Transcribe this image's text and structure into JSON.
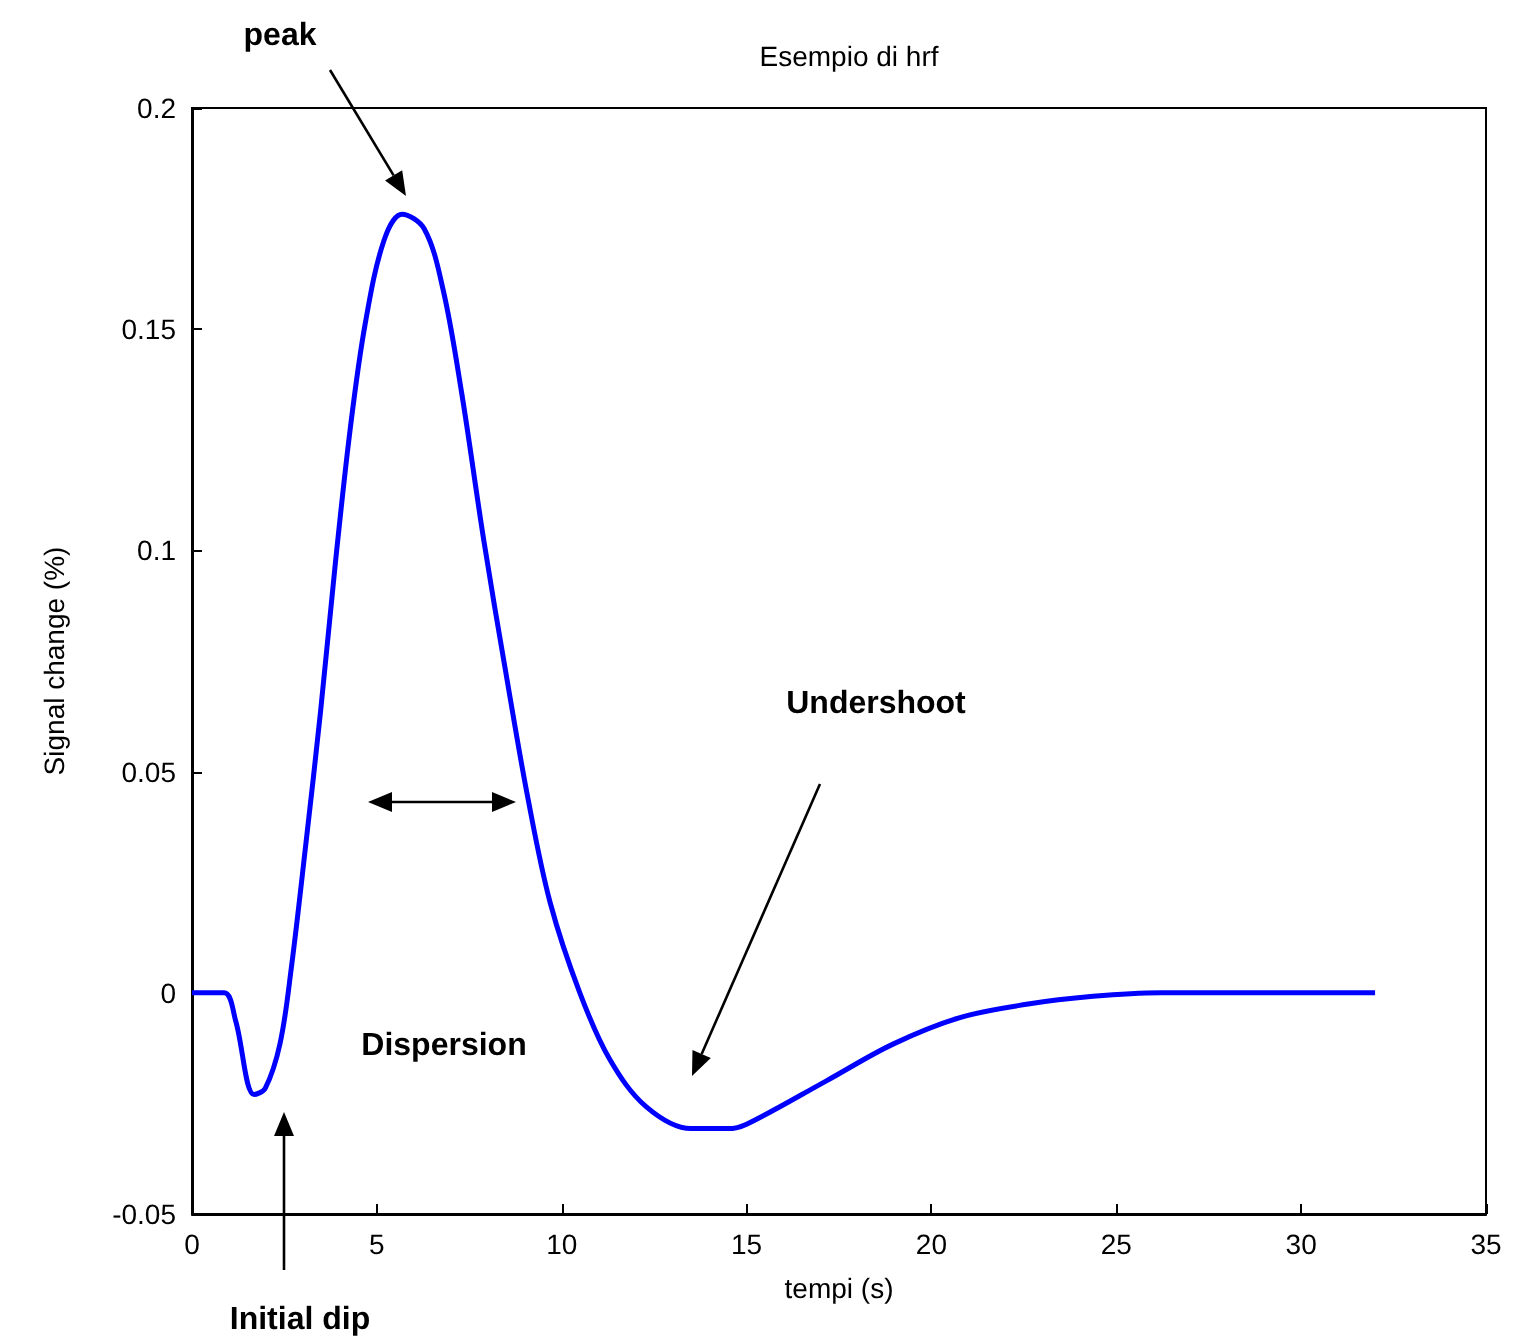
{
  "chart_data": {
    "type": "line",
    "title": "Esempio di hrf",
    "xlabel": "tempi (s)",
    "ylabel": "Signal change (%)",
    "annotations": [
      "peak",
      "Dispersion",
      "Undershoot",
      "Initial dip"
    ],
    "series": [
      {
        "color": "#0000ff",
        "x": [
          0,
          0.87,
          1.18,
          1.68,
          1.98,
          2.38,
          2.68,
          3.08,
          3.48,
          3.88,
          4.28,
          4.68,
          5.19,
          5.68,
          6.28,
          6.79,
          7.29,
          7.89,
          8.49,
          9.09,
          9.69,
          10.49,
          11.29,
          12.29,
          13.5,
          14.49,
          15.0,
          17.16,
          18.96,
          20.77,
          22.57,
          24.37,
          26.2,
          32.0
        ],
        "values": [
          0,
          0,
          -0.0063,
          -0.023,
          -0.0216,
          -0.0115,
          0.0052,
          0.0337,
          0.0638,
          0.0973,
          0.1275,
          0.151,
          0.17,
          0.176,
          0.1727,
          0.159,
          0.1358,
          0.1024,
          0.0723,
          0.0438,
          0.0203,
          0,
          -0.0149,
          -0.0258,
          -0.0307,
          -0.0307,
          -0.0297,
          -0.0199,
          -0.0116,
          -0.0056,
          -0.0026,
          -0.0008,
          0,
          0
        ]
      }
    ],
    "xlim": [
      0,
      35
    ],
    "xticks": [
      0,
      5,
      10,
      15,
      20,
      25,
      30,
      35
    ],
    "ylim": [
      -0.05,
      0.2
    ],
    "yticks": [
      -0.05,
      0,
      0.05,
      0.1,
      0.15,
      0.2
    ],
    "grid": false,
    "marker": "none",
    "line_style": "solid"
  }
}
